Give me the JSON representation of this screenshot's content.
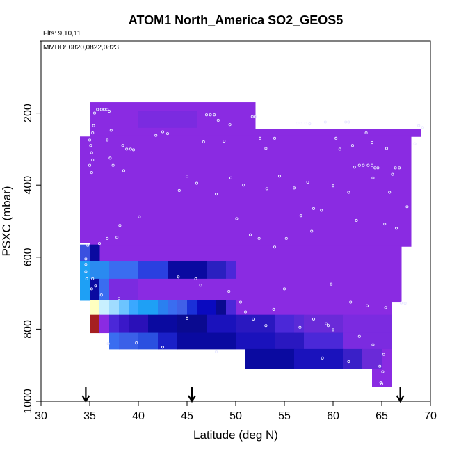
{
  "chart_data": {
    "type": "heatmap",
    "title": "ATOM1 North_America SO2_GEOS5",
    "annotations": [
      "Flts: 9,10,11",
      "MMDD: 0820,0822,0823"
    ],
    "xlabel": "Latitude (deg N)",
    "ylabel": "PSXC (mbar)",
    "xlim": [
      30,
      70
    ],
    "ylim": [
      1000,
      0
    ],
    "y_reversed": true,
    "grid": false,
    "legend": "none",
    "x_ticks": [
      30,
      35,
      40,
      45,
      50,
      55,
      60,
      65,
      70
    ],
    "x_tick_labels": [
      "30",
      "35",
      "40",
      "45",
      "50",
      "55",
      "60",
      "65",
      "70"
    ],
    "y_ticks": [
      200,
      400,
      600,
      800,
      1000
    ],
    "y_tick_labels": [
      "200",
      "400",
      "600",
      "800",
      "1000"
    ],
    "arrow_markers_lat": [
      34.6,
      45.5,
      66.9
    ],
    "colors": {
      "background_violet": "#8a2be2",
      "violet_blue": "#7b2be0",
      "indigo": "#4b28d8",
      "deep_blue": "#1a12bc",
      "navy": "#0a0a90",
      "royal_blue": "#3a6df0",
      "sky": "#1ea0f5",
      "light_sky": "#6cc4ff",
      "pale_cyan": "#c8f0ff",
      "pale_yellow": "#ffffc0",
      "dark_red": "#a52020",
      "marker": "#e8e8ff"
    },
    "cells": [
      {
        "lat": [
          35,
          52
        ],
        "p": [
          170,
          265
        ],
        "c": "#8a2be2"
      },
      {
        "lat": [
          35,
          52
        ],
        "p": [
          262,
          350
        ],
        "c": "#8a2be2"
      },
      {
        "lat": [
          34,
          35
        ],
        "p": [
          265,
          560
        ],
        "c": "#8a2be2"
      },
      {
        "lat": [
          52,
          69
        ],
        "p": [
          245,
          265
        ],
        "c": "#8a2be2"
      },
      {
        "lat": [
          52,
          68
        ],
        "p": [
          262,
          470
        ],
        "c": "#8a2be2"
      },
      {
        "lat": [
          35,
          68
        ],
        "p": [
          345,
          570
        ],
        "c": "#8a2be2"
      },
      {
        "lat": [
          35,
          67
        ],
        "p": [
          568,
          725
        ],
        "c": "#8a2be2"
      },
      {
        "lat": [
          37,
          66
        ],
        "p": [
          720,
          760
        ],
        "c": "#8a2be2"
      },
      {
        "lat": [
          51,
          64
        ],
        "p": [
          760,
          800
        ],
        "c": "#8a2be2"
      },
      {
        "lat": [
          64,
          66
        ],
        "p": [
          800,
          960
        ],
        "c": "#8a2be2"
      },
      {
        "lat": [
          40,
          46
        ],
        "p": [
          195,
          240
        ],
        "c": "#7b2be0"
      },
      {
        "lat": [
          34,
          35
        ],
        "p": [
          565,
          610
        ],
        "c": "#3a50e0"
      },
      {
        "lat": [
          35,
          36
        ],
        "p": [
          565,
          610
        ],
        "c": "#0a0aa0"
      },
      {
        "lat": [
          34,
          35
        ],
        "p": [
          610,
          720
        ],
        "c": "#1ea0f5"
      },
      {
        "lat": [
          35,
          37
        ],
        "p": [
          610,
          660
        ],
        "c": "#2a8af0"
      },
      {
        "lat": [
          37,
          40
        ],
        "p": [
          610,
          660
        ],
        "c": "#3a6df0"
      },
      {
        "lat": [
          40,
          43
        ],
        "p": [
          610,
          660
        ],
        "c": "#2a40e0"
      },
      {
        "lat": [
          43,
          47
        ],
        "p": [
          610,
          660
        ],
        "c": "#0a0aa0"
      },
      {
        "lat": [
          47,
          49
        ],
        "p": [
          610,
          660
        ],
        "c": "#2a20c0"
      },
      {
        "lat": [
          49,
          50
        ],
        "p": [
          610,
          660
        ],
        "c": "#4b28d8"
      },
      {
        "lat": [
          35,
          36
        ],
        "p": [
          660,
          720
        ],
        "c": "#0a0aa0"
      },
      {
        "lat": [
          36,
          37
        ],
        "p": [
          660,
          720
        ],
        "c": "#3a6df0"
      },
      {
        "lat": [
          37,
          40
        ],
        "p": [
          660,
          720
        ],
        "c": "#7b2be0"
      },
      {
        "lat": [
          40,
          50
        ],
        "p": [
          660,
          720
        ],
        "c": "#8a2be2"
      },
      {
        "lat": [
          35,
          36
        ],
        "p": [
          720,
          760
        ],
        "c": "#ffffc0"
      },
      {
        "lat": [
          36,
          37
        ],
        "p": [
          720,
          760
        ],
        "c": "#c8f0ff"
      },
      {
        "lat": [
          37,
          38
        ],
        "p": [
          720,
          760
        ],
        "c": "#a0dcff"
      },
      {
        "lat": [
          38,
          39
        ],
        "p": [
          720,
          760
        ],
        "c": "#6cc4ff"
      },
      {
        "lat": [
          39,
          40
        ],
        "p": [
          720,
          760
        ],
        "c": "#3aa8ff"
      },
      {
        "lat": [
          40,
          42
        ],
        "p": [
          720,
          760
        ],
        "c": "#1ea0f5"
      },
      {
        "lat": [
          42,
          43
        ],
        "p": [
          720,
          760
        ],
        "c": "#2a80f0"
      },
      {
        "lat": [
          43,
          44
        ],
        "p": [
          720,
          760
        ],
        "c": "#3a6df0"
      },
      {
        "lat": [
          44,
          45
        ],
        "p": [
          720,
          760
        ],
        "c": "#4060e8"
      },
      {
        "lat": [
          45,
          46
        ],
        "p": [
          720,
          760
        ],
        "c": "#1a30d8"
      },
      {
        "lat": [
          46,
          48
        ],
        "p": [
          720,
          760
        ],
        "c": "#0a0ac0"
      },
      {
        "lat": [
          48,
          49
        ],
        "p": [
          720,
          760
        ],
        "c": "#0a0a90"
      },
      {
        "lat": [
          49,
          50
        ],
        "p": [
          720,
          760
        ],
        "c": "#4b28d8"
      },
      {
        "lat": [
          35,
          36
        ],
        "p": [
          760,
          810
        ],
        "c": "#a52020"
      },
      {
        "lat": [
          36,
          37
        ],
        "p": [
          760,
          810
        ],
        "c": "#8a2be2"
      },
      {
        "lat": [
          37,
          38
        ],
        "p": [
          760,
          810
        ],
        "c": "#4b28d8"
      },
      {
        "lat": [
          38,
          39
        ],
        "p": [
          760,
          810
        ],
        "c": "#3a18c8"
      },
      {
        "lat": [
          39,
          41
        ],
        "p": [
          760,
          810
        ],
        "c": "#2a10b8"
      },
      {
        "lat": [
          41,
          44
        ],
        "p": [
          760,
          810
        ],
        "c": "#0a0aa0"
      },
      {
        "lat": [
          44,
          47
        ],
        "p": [
          760,
          810
        ],
        "c": "#0a0a90"
      },
      {
        "lat": [
          47,
          50
        ],
        "p": [
          760,
          810
        ],
        "c": "#1a12bc"
      },
      {
        "lat": [
          50,
          54
        ],
        "p": [
          760,
          810
        ],
        "c": "#2a18c0"
      },
      {
        "lat": [
          54,
          56
        ],
        "p": [
          760,
          810
        ],
        "c": "#4b28d8"
      },
      {
        "lat": [
          56,
          57
        ],
        "p": [
          760,
          810
        ],
        "c": "#5a2ad8"
      },
      {
        "lat": [
          57,
          61
        ],
        "p": [
          760,
          810
        ],
        "c": "#6a2ad8"
      },
      {
        "lat": [
          61,
          66
        ],
        "p": [
          760,
          810
        ],
        "c": "#7b2be0"
      },
      {
        "lat": [
          37,
          38
        ],
        "p": [
          810,
          855
        ],
        "c": "#3a6df0"
      },
      {
        "lat": [
          38,
          40
        ],
        "p": [
          810,
          855
        ],
        "c": "#3a60e8"
      },
      {
        "lat": [
          40,
          42
        ],
        "p": [
          810,
          855
        ],
        "c": "#2a50e0"
      },
      {
        "lat": [
          42,
          44
        ],
        "p": [
          810,
          855
        ],
        "c": "#1a20c8"
      },
      {
        "lat": [
          44,
          50
        ],
        "p": [
          810,
          855
        ],
        "c": "#0a0aa0"
      },
      {
        "lat": [
          50,
          54
        ],
        "p": [
          810,
          855
        ],
        "c": "#1a12bc"
      },
      {
        "lat": [
          54,
          57
        ],
        "p": [
          810,
          855
        ],
        "c": "#2a18c0"
      },
      {
        "lat": [
          57,
          61
        ],
        "p": [
          810,
          855
        ],
        "c": "#4b28d8"
      },
      {
        "lat": [
          61,
          66
        ],
        "p": [
          810,
          855
        ],
        "c": "#7b2be0"
      },
      {
        "lat": [
          51,
          56
        ],
        "p": [
          855,
          910
        ],
        "c": "#0a0aa0"
      },
      {
        "lat": [
          56,
          61
        ],
        "p": [
          855,
          910
        ],
        "c": "#1a12bc"
      },
      {
        "lat": [
          61,
          63
        ],
        "p": [
          855,
          910
        ],
        "c": "#3a20c8"
      },
      {
        "lat": [
          63,
          65
        ],
        "p": [
          855,
          910
        ],
        "c": "#6a2ad8"
      },
      {
        "lat": [
          65,
          66
        ],
        "p": [
          855,
          910
        ],
        "c": "#8a2be2"
      }
    ],
    "points": [
      [
        35.8,
        190
      ],
      [
        36.2,
        190
      ],
      [
        36.5,
        190
      ],
      [
        36.8,
        190
      ],
      [
        35.5,
        200
      ],
      [
        37.0,
        195
      ],
      [
        35.4,
        235
      ],
      [
        35.3,
        255
      ],
      [
        37.2,
        248
      ],
      [
        35.0,
        275
      ],
      [
        35.1,
        290
      ],
      [
        36.8,
        275
      ],
      [
        38.8,
        300
      ],
      [
        39.2,
        300
      ],
      [
        39.5,
        302
      ],
      [
        38.4,
        290
      ],
      [
        35.2,
        310
      ],
      [
        35.3,
        330
      ],
      [
        35.0,
        345
      ],
      [
        35.2,
        365
      ],
      [
        37.1,
        325
      ],
      [
        37.4,
        345
      ],
      [
        38.5,
        360
      ],
      [
        41.8,
        262
      ],
      [
        42.5,
        252
      ],
      [
        43.0,
        257
      ],
      [
        47.0,
        205
      ],
      [
        47.4,
        205
      ],
      [
        47.8,
        205
      ],
      [
        48.2,
        220
      ],
      [
        46.7,
        280
      ],
      [
        48.8,
        278
      ],
      [
        49.4,
        232
      ],
      [
        51.7,
        210
      ],
      [
        52.0,
        210
      ],
      [
        52.5,
        270
      ],
      [
        53.1,
        298
      ],
      [
        54.0,
        270
      ],
      [
        56.3,
        228
      ],
      [
        56.7,
        228
      ],
      [
        57.2,
        228
      ],
      [
        57.6,
        230
      ],
      [
        59.2,
        225
      ],
      [
        61.3,
        225
      ],
      [
        61.6,
        225
      ],
      [
        63.4,
        255
      ],
      [
        60.3,
        270
      ],
      [
        60.7,
        300
      ],
      [
        62.0,
        290
      ],
      [
        64.0,
        282
      ],
      [
        65.5,
        298
      ],
      [
        68.8,
        235
      ],
      [
        69.2,
        240
      ],
      [
        68.4,
        285
      ],
      [
        62.2,
        350
      ],
      [
        62.7,
        345
      ],
      [
        63.1,
        345
      ],
      [
        63.6,
        345
      ],
      [
        64.0,
        345
      ],
      [
        64.3,
        352
      ],
      [
        64.6,
        352
      ],
      [
        66.4,
        352
      ],
      [
        66.8,
        352
      ],
      [
        66.1,
        370
      ],
      [
        64.1,
        380
      ],
      [
        65.8,
        420
      ],
      [
        67.6,
        460
      ],
      [
        45.0,
        375
      ],
      [
        44.2,
        415
      ],
      [
        46.0,
        395
      ],
      [
        48.0,
        425
      ],
      [
        49.5,
        380
      ],
      [
        50.8,
        400
      ],
      [
        53.2,
        410
      ],
      [
        54.5,
        375
      ],
      [
        56.0,
        408
      ],
      [
        57.4,
        392
      ],
      [
        60.0,
        402
      ],
      [
        61.6,
        420
      ],
      [
        58.0,
        465
      ],
      [
        58.8,
        470
      ],
      [
        62.4,
        498
      ],
      [
        65.3,
        508
      ],
      [
        66.5,
        520
      ],
      [
        56.7,
        485
      ],
      [
        57.8,
        528
      ],
      [
        55.2,
        548
      ],
      [
        54.0,
        572
      ],
      [
        52.4,
        548
      ],
      [
        51.5,
        538
      ],
      [
        50.1,
        493
      ],
      [
        40.1,
        488
      ],
      [
        38.1,
        512
      ],
      [
        37.8,
        545
      ],
      [
        36.8,
        548
      ],
      [
        36.0,
        562
      ],
      [
        34.8,
        567
      ],
      [
        34.6,
        605
      ],
      [
        34.6,
        620
      ],
      [
        34.6,
        640
      ],
      [
        34.7,
        660
      ],
      [
        35.3,
        660
      ],
      [
        35.2,
        688
      ],
      [
        35.6,
        680
      ],
      [
        36.2,
        705
      ],
      [
        38.0,
        715
      ],
      [
        44.1,
        655
      ],
      [
        45.9,
        660
      ],
      [
        46.4,
        678
      ],
      [
        49.3,
        695
      ],
      [
        50.5,
        725
      ],
      [
        51.0,
        752
      ],
      [
        53.9,
        745
      ],
      [
        55.0,
        688
      ],
      [
        59.8,
        675
      ],
      [
        61.8,
        725
      ],
      [
        63.5,
        735
      ],
      [
        65.4,
        740
      ],
      [
        67.0,
        727
      ],
      [
        67.4,
        728
      ],
      [
        45.0,
        770
      ],
      [
        51.8,
        772
      ],
      [
        53.1,
        790
      ],
      [
        56.6,
        795
      ],
      [
        58.0,
        772
      ],
      [
        59.3,
        785
      ],
      [
        59.5,
        790
      ],
      [
        60.0,
        802
      ],
      [
        62.7,
        820
      ],
      [
        64.1,
        843
      ],
      [
        65.2,
        870
      ],
      [
        64.8,
        903
      ],
      [
        65.1,
        918
      ],
      [
        64.9,
        948
      ],
      [
        65.0,
        952
      ],
      [
        36.9,
        840
      ],
      [
        39.8,
        838
      ],
      [
        42.5,
        850
      ],
      [
        48.0,
        863
      ],
      [
        58.9,
        880
      ],
      [
        61.6,
        890
      ]
    ]
  }
}
